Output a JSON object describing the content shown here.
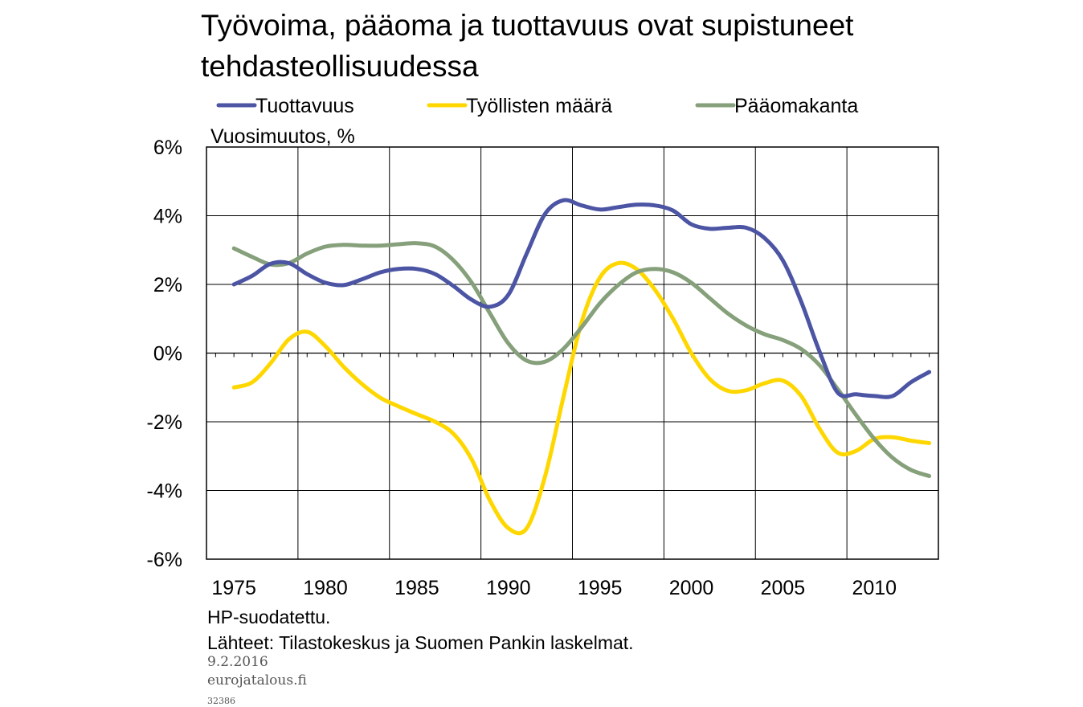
{
  "chart_data": {
    "type": "line",
    "title": "Työvoima, pääoma ja tuottavuus ovat supistuneet tehdasteollisuudessa",
    "title_lines": [
      "Työvoima, pääoma ja tuottavuus ovat supistuneet",
      "tehdasteollisuudessa"
    ],
    "ylabel": "Vuosimuutos, %",
    "xlabel": "",
    "xlim": [
      1973.5,
      2013.5
    ],
    "ylim": [
      -6,
      6
    ],
    "y_ticks": [
      6,
      4,
      2,
      0,
      -2,
      -4,
      -6
    ],
    "y_tick_labels": [
      "6%",
      "4%",
      "2%",
      "0%",
      "-2%",
      "-4%",
      "-6%"
    ],
    "x_ticks": [
      1975,
      1980,
      1985,
      1990,
      1995,
      2000,
      2005,
      2010
    ],
    "x_tick_labels": [
      "1975",
      "1980",
      "1985",
      "1990",
      "1995",
      "2000",
      "2005",
      "2010"
    ],
    "grid": true,
    "legend_position": "top",
    "series": [
      {
        "name": "Tuottavuus",
        "color": "#4c54a4",
        "x": [
          1975,
          1976,
          1977,
          1978,
          1979,
          1980,
          1981,
          1982,
          1983,
          1984,
          1985,
          1986,
          1987,
          1988,
          1989,
          1990,
          1991,
          1992,
          1993,
          1994,
          1995,
          1996,
          1997,
          1998,
          1999,
          2000,
          2001,
          2002,
          2003,
          2004,
          2005,
          2006,
          2007,
          2008,
          2009,
          2010,
          2011,
          2012,
          2013
        ],
        "y": [
          2.0,
          2.25,
          2.6,
          2.62,
          2.3,
          2.05,
          1.98,
          2.15,
          2.35,
          2.45,
          2.45,
          2.3,
          1.95,
          1.55,
          1.35,
          1.7,
          2.9,
          4.05,
          4.45,
          4.3,
          4.18,
          4.25,
          4.32,
          4.3,
          4.15,
          3.75,
          3.62,
          3.65,
          3.65,
          3.35,
          2.7,
          1.5,
          0.05,
          -1.15,
          -1.2,
          -1.25,
          -1.25,
          -0.85,
          -0.55
        ]
      },
      {
        "name": "Työllisten määrä",
        "color": "#ffd700",
        "x": [
          1975,
          1976,
          1977,
          1978,
          1979,
          1980,
          1981,
          1982,
          1983,
          1984,
          1985,
          1986,
          1987,
          1988,
          1989,
          1990,
          1991,
          1992,
          1993,
          1994,
          1995,
          1996,
          1997,
          1998,
          1999,
          2000,
          2001,
          2002,
          2003,
          2004,
          2005,
          2006,
          2007,
          2008,
          2009,
          2010,
          2011,
          2012,
          2013
        ],
        "y": [
          -1.0,
          -0.85,
          -0.3,
          0.4,
          0.62,
          0.2,
          -0.4,
          -0.9,
          -1.3,
          -1.55,
          -1.78,
          -2.0,
          -2.35,
          -3.1,
          -4.3,
          -5.1,
          -5.1,
          -3.6,
          -1.3,
          0.9,
          2.2,
          2.62,
          2.45,
          1.85,
          1.0,
          0.0,
          -0.75,
          -1.1,
          -1.08,
          -0.88,
          -0.8,
          -1.25,
          -2.2,
          -2.9,
          -2.85,
          -2.5,
          -2.45,
          -2.55,
          -2.62
        ]
      },
      {
        "name": "Pääomakanta",
        "color": "#85a07a",
        "x": [
          1975,
          1976,
          1977,
          1978,
          1979,
          1980,
          1981,
          1982,
          1983,
          1984,
          1985,
          1986,
          1987,
          1988,
          1989,
          1990,
          1991,
          1992,
          1993,
          1994,
          1995,
          1996,
          1997,
          1998,
          1999,
          2000,
          2001,
          2002,
          2003,
          2004,
          2005,
          2006,
          2007,
          2008,
          2009,
          2010,
          2011,
          2012,
          2013
        ],
        "y": [
          3.05,
          2.8,
          2.58,
          2.62,
          2.9,
          3.1,
          3.15,
          3.13,
          3.13,
          3.17,
          3.2,
          3.1,
          2.7,
          2.05,
          1.15,
          0.28,
          -0.22,
          -0.25,
          0.12,
          0.75,
          1.45,
          1.98,
          2.35,
          2.45,
          2.35,
          2.05,
          1.6,
          1.15,
          0.8,
          0.55,
          0.38,
          0.12,
          -0.35,
          -1.05,
          -1.8,
          -2.5,
          -3.05,
          -3.4,
          -3.58
        ]
      }
    ],
    "notes": [
      "HP-suodatettu.",
      "Lähteet: Tilastokeskus ja Suomen Pankin laskelmat."
    ]
  },
  "footer": {
    "date": "9.2.2016",
    "site": "eurojatalous.fi",
    "code": "32386"
  }
}
